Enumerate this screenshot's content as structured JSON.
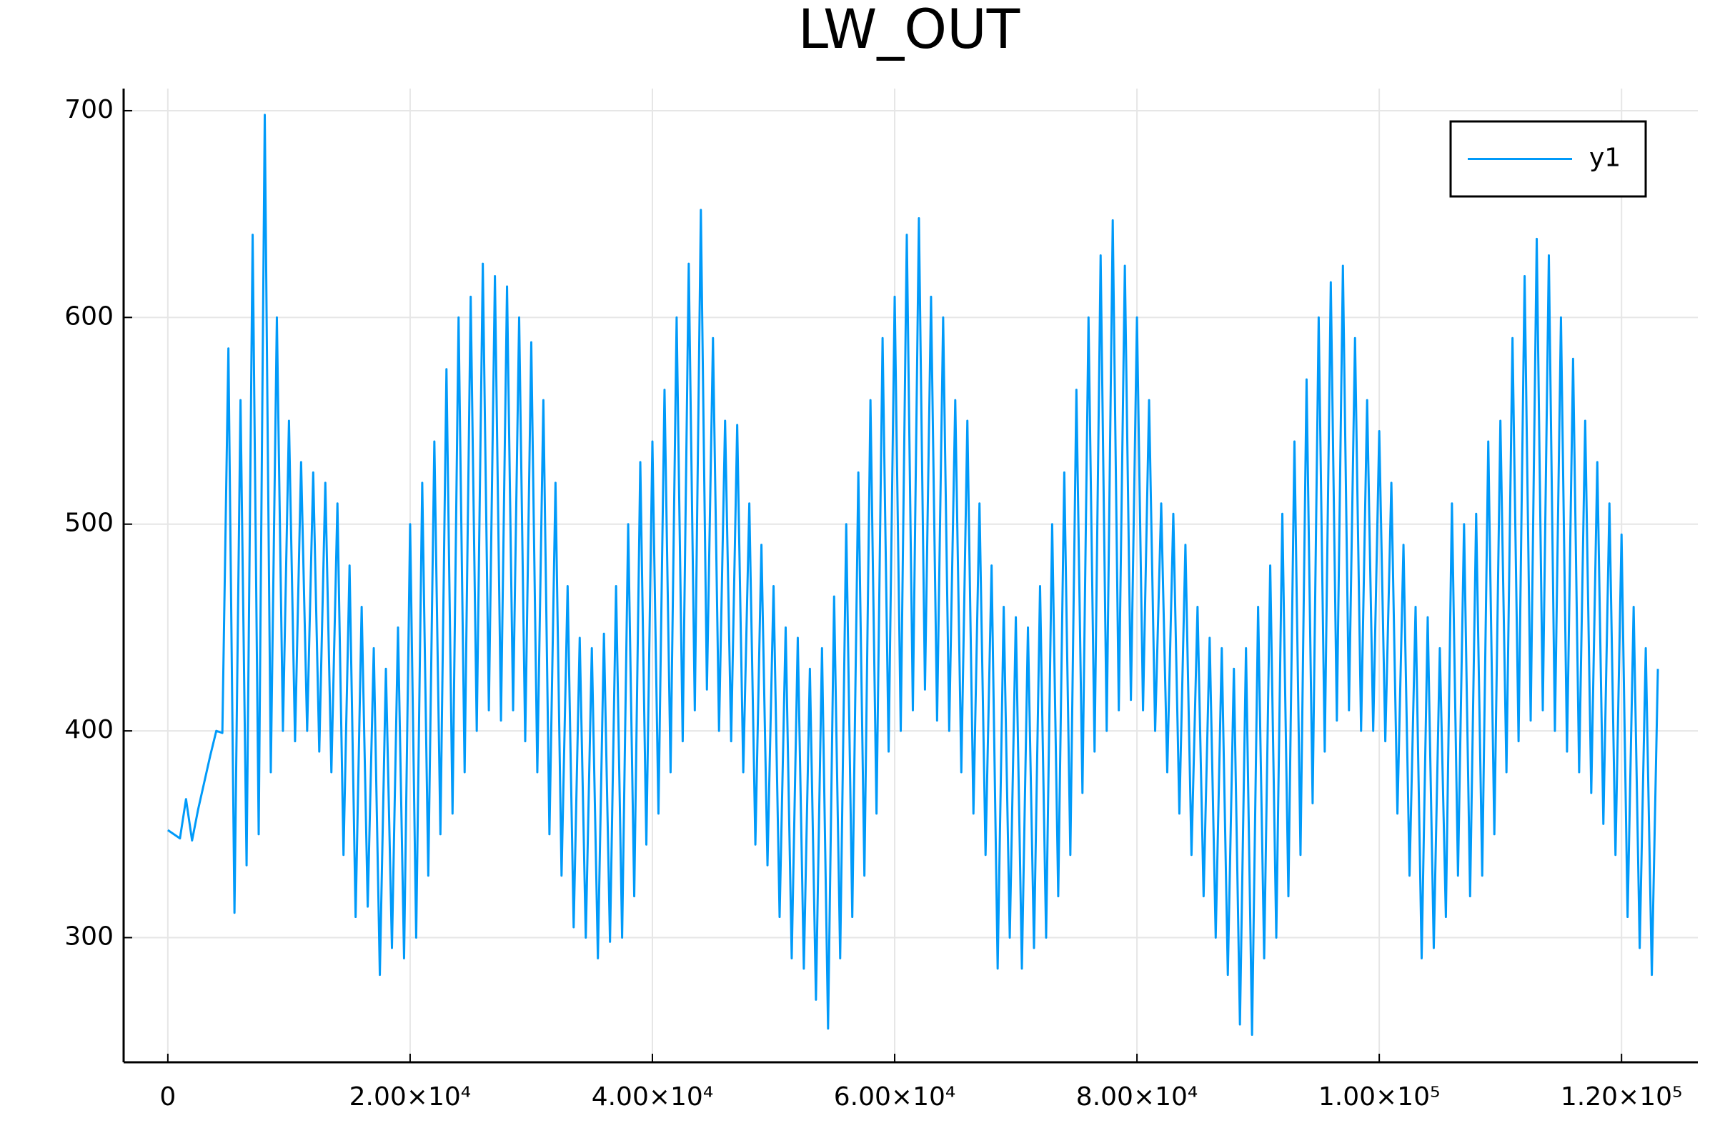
{
  "chart_data": {
    "type": "line",
    "title": "LW_OUT",
    "x": [
      0,
      1000,
      1500,
      2000,
      2500,
      3000,
      3500,
      4000,
      4500,
      5000,
      5500,
      6000,
      6500,
      7000,
      7500,
      8000,
      8500,
      9000,
      9500,
      10000,
      10500,
      11000,
      11500,
      12000,
      12500,
      13000,
      13500,
      14000,
      14500,
      15000,
      15500,
      16000,
      16500,
      17000,
      17500,
      18000,
      18500,
      19000,
      19500,
      20000,
      20500,
      21000,
      21500,
      22000,
      22500,
      23000,
      23500,
      24000,
      24500,
      25000,
      25500,
      26000,
      26500,
      27000,
      27500,
      28000,
      28500,
      29000,
      29500,
      30000,
      30500,
      31000,
      31500,
      32000,
      32500,
      33000,
      33500,
      34000,
      34500,
      35000,
      35500,
      36000,
      36500,
      37000,
      37500,
      38000,
      38500,
      39000,
      39500,
      40000,
      40500,
      41000,
      41500,
      42000,
      42500,
      43000,
      43500,
      44000,
      44500,
      45000,
      45500,
      46000,
      46500,
      47000,
      47500,
      48000,
      48500,
      49000,
      49500,
      50000,
      50500,
      51000,
      51500,
      52000,
      52500,
      53000,
      53500,
      54000,
      54500,
      55000,
      55500,
      56000,
      56500,
      57000,
      57500,
      58000,
      58500,
      59000,
      59500,
      60000,
      60500,
      61000,
      61500,
      62000,
      62500,
      63000,
      63500,
      64000,
      64500,
      65000,
      65500,
      66000,
      66500,
      67000,
      67500,
      68000,
      68500,
      69000,
      69500,
      70000,
      70500,
      71000,
      71500,
      72000,
      72500,
      73000,
      73500,
      74000,
      74500,
      75000,
      75500,
      76000,
      76500,
      77000,
      77500,
      78000,
      78500,
      79000,
      79500,
      80000,
      80500,
      81000,
      81500,
      82000,
      82500,
      83000,
      83500,
      84000,
      84500,
      85000,
      85500,
      86000,
      86500,
      87000,
      87500,
      88000,
      88500,
      89000,
      89500,
      90000,
      90500,
      91000,
      91500,
      92000,
      92500,
      93000,
      93500,
      94000,
      94500,
      95000,
      95500,
      96000,
      96500,
      97000,
      97500,
      98000,
      98500,
      99000,
      99500,
      100000,
      100500,
      101000,
      101500,
      102000,
      102500,
      103000,
      103500,
      104000,
      104500,
      105000,
      105500,
      106000,
      106500,
      107000,
      107500,
      108000,
      108500,
      109000,
      109500,
      110000,
      110500,
      111000,
      111500,
      112000,
      112500,
      113000,
      113500,
      114000,
      114500,
      115000,
      115500,
      116000,
      116500,
      117000,
      117500,
      118000,
      118500,
      119000,
      119500,
      120000,
      120500,
      121000,
      121500,
      122000,
      122500,
      123000
    ],
    "series": [
      {
        "name": "y1",
        "color": "#009af9",
        "values": [
          352,
          348,
          367,
          347,
          362,
          375,
          388,
          400,
          399,
          585,
          312,
          560,
          335,
          640,
          350,
          698,
          380,
          600,
          400,
          550,
          395,
          530,
          400,
          525,
          390,
          520,
          380,
          510,
          340,
          480,
          310,
          460,
          315,
          440,
          282,
          430,
          295,
          450,
          290,
          500,
          300,
          520,
          330,
          540,
          350,
          575,
          360,
          600,
          380,
          610,
          400,
          626,
          410,
          620,
          405,
          615,
          410,
          600,
          395,
          588,
          380,
          560,
          350,
          520,
          330,
          470,
          305,
          445,
          300,
          440,
          290,
          447,
          298,
          470,
          300,
          500,
          320,
          530,
          345,
          540,
          360,
          565,
          380,
          600,
          395,
          626,
          410,
          652,
          420,
          590,
          400,
          550,
          395,
          548,
          380,
          510,
          345,
          490,
          335,
          470,
          310,
          450,
          290,
          445,
          285,
          430,
          270,
          440,
          256,
          465,
          290,
          500,
          310,
          525,
          330,
          560,
          360,
          590,
          390,
          610,
          400,
          640,
          410,
          648,
          420,
          610,
          405,
          600,
          400,
          560,
          380,
          550,
          360,
          510,
          340,
          480,
          285,
          460,
          300,
          455,
          285,
          450,
          295,
          470,
          300,
          500,
          320,
          525,
          340,
          565,
          370,
          600,
          390,
          630,
          400,
          647,
          410,
          625,
          415,
          600,
          410,
          560,
          400,
          510,
          380,
          505,
          360,
          490,
          340,
          460,
          320,
          445,
          300,
          440,
          282,
          430,
          258,
          440,
          253,
          460,
          290,
          480,
          300,
          505,
          320,
          540,
          340,
          570,
          365,
          600,
          390,
          617,
          405,
          625,
          410,
          590,
          400,
          560,
          400,
          545,
          395,
          520,
          360,
          490,
          330,
          460,
          290,
          455,
          295,
          440,
          310,
          510,
          330,
          500,
          320,
          505,
          330,
          540,
          350,
          550,
          380,
          590,
          395,
          620,
          405,
          638,
          410,
          630,
          400,
          600,
          390,
          580,
          380,
          550,
          370,
          530,
          355,
          510,
          340,
          495,
          310,
          460,
          295,
          440,
          282,
          430
        ]
      }
    ],
    "xlim": [
      -3650,
      126300
    ],
    "xticks": [
      0,
      {
        "value": 20000,
        "label": "2.00×10⁴"
      },
      {
        "value": 40000,
        "label": "4.00×10⁴"
      },
      {
        "value": 60000,
        "label": "6.00×10⁴"
      },
      {
        "value": 80000,
        "label": "8.00×10⁴"
      },
      {
        "value": 100000,
        "label": "1.00×10⁵"
      },
      {
        "value": 120000,
        "label": "1.20×10⁵"
      }
    ],
    "ylim": [
      239.7,
      710.7
    ],
    "yticks": [
      300,
      400,
      500,
      600,
      700
    ],
    "grid": true,
    "legend": "top right"
  }
}
